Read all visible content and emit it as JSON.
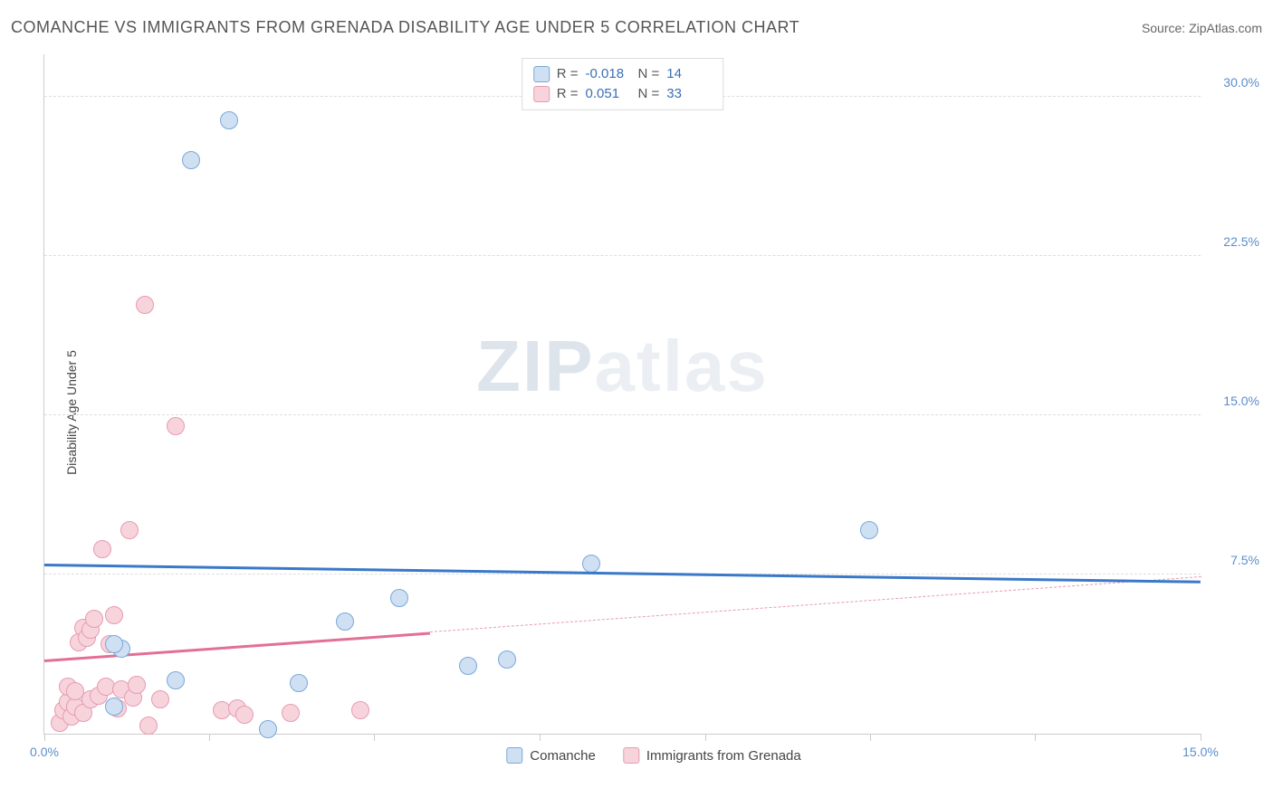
{
  "header": {
    "title": "COMANCHE VS IMMIGRANTS FROM GRENADA DISABILITY AGE UNDER 5 CORRELATION CHART",
    "source_prefix": "Source: ",
    "source": "ZipAtlas.com"
  },
  "watermark": {
    "part1": "ZIP",
    "part2": "atlas"
  },
  "chart": {
    "type": "scatter",
    "ylabel": "Disability Age Under 5",
    "xlim": [
      0,
      15
    ],
    "ylim": [
      0,
      32
    ],
    "xticks": [
      0,
      2.14,
      4.28,
      6.42,
      8.57,
      10.71,
      12.85,
      15
    ],
    "xtick_labels": {
      "0": "0.0%",
      "15": "15.0%"
    },
    "yticks": [
      7.5,
      15.0,
      22.5,
      30.0
    ],
    "ytick_labels": [
      "7.5%",
      "15.0%",
      "22.5%",
      "30.0%"
    ],
    "grid_color": "#dddddd",
    "axis_color": "#cccccc",
    "background_color": "#ffffff",
    "tick_label_color": "#5b8ecb",
    "series": [
      {
        "name": "Comanche",
        "color_fill": "#cfe0f3",
        "color_stroke": "#7aa8d8",
        "marker_radius": 10,
        "R": "-0.018",
        "N": "14",
        "trend": {
          "y_at_x0": 8.0,
          "y_at_xmax": 7.2,
          "solid_until_x": 15,
          "solid_color": "#3a78c9",
          "dash_color": "#3a78c9"
        },
        "points": [
          [
            1.0,
            4.0
          ],
          [
            0.9,
            1.3
          ],
          [
            0.9,
            4.2
          ],
          [
            2.4,
            28.9
          ],
          [
            1.9,
            27.0
          ],
          [
            1.7,
            2.5
          ],
          [
            3.3,
            2.4
          ],
          [
            2.9,
            0.2
          ],
          [
            3.9,
            5.3
          ],
          [
            4.6,
            6.4
          ],
          [
            5.5,
            3.2
          ],
          [
            6.0,
            3.5
          ],
          [
            7.1,
            8.0
          ],
          [
            10.7,
            9.6
          ]
        ]
      },
      {
        "name": "Immigrants from Grenada",
        "color_fill": "#f7d4dc",
        "color_stroke": "#e79bb0",
        "marker_radius": 10,
        "R": "0.051",
        "N": "33",
        "trend": {
          "y_at_x0": 3.5,
          "y_at_xmax": 7.4,
          "solid_until_x": 5,
          "solid_color": "#e36f93",
          "dash_color": "#e79bb0"
        },
        "points": [
          [
            0.2,
            0.5
          ],
          [
            0.25,
            1.1
          ],
          [
            0.3,
            1.5
          ],
          [
            0.3,
            2.2
          ],
          [
            0.35,
            0.8
          ],
          [
            0.4,
            1.3
          ],
          [
            0.4,
            2.0
          ],
          [
            0.45,
            4.3
          ],
          [
            0.5,
            5.0
          ],
          [
            0.5,
            1.0
          ],
          [
            0.55,
            4.5
          ],
          [
            0.6,
            1.6
          ],
          [
            0.6,
            4.9
          ],
          [
            0.65,
            5.4
          ],
          [
            0.7,
            1.8
          ],
          [
            0.75,
            8.7
          ],
          [
            0.8,
            2.2
          ],
          [
            0.85,
            4.2
          ],
          [
            0.9,
            5.6
          ],
          [
            0.95,
            1.2
          ],
          [
            1.0,
            2.1
          ],
          [
            1.1,
            9.6
          ],
          [
            1.15,
            1.7
          ],
          [
            1.2,
            2.3
          ],
          [
            1.3,
            20.2
          ],
          [
            1.35,
            0.4
          ],
          [
            1.5,
            1.6
          ],
          [
            1.7,
            14.5
          ],
          [
            2.3,
            1.1
          ],
          [
            2.5,
            1.2
          ],
          [
            2.6,
            0.9
          ],
          [
            3.2,
            1.0
          ],
          [
            4.1,
            1.1
          ]
        ]
      }
    ]
  },
  "legend_top": {
    "r_label": "R =",
    "n_label": "N ="
  },
  "legend_bottom": {
    "items": [
      "Comanche",
      "Immigrants from Grenada"
    ]
  }
}
